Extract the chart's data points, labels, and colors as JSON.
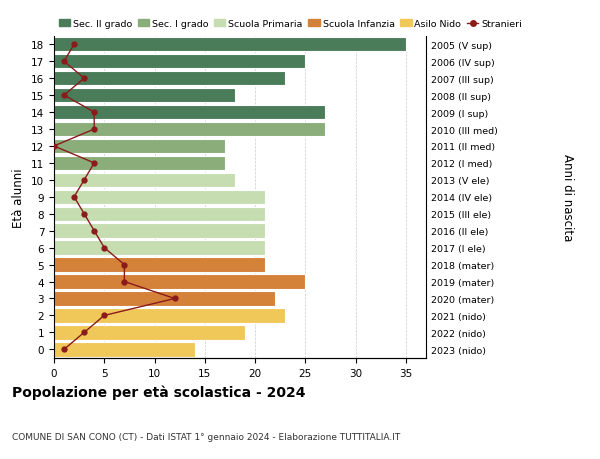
{
  "ages": [
    18,
    17,
    16,
    15,
    14,
    13,
    12,
    11,
    10,
    9,
    8,
    7,
    6,
    5,
    4,
    3,
    2,
    1,
    0
  ],
  "years": [
    "2005 (V sup)",
    "2006 (IV sup)",
    "2007 (III sup)",
    "2008 (II sup)",
    "2009 (I sup)",
    "2010 (III med)",
    "2011 (II med)",
    "2012 (I med)",
    "2013 (V ele)",
    "2014 (IV ele)",
    "2015 (III ele)",
    "2016 (II ele)",
    "2017 (I ele)",
    "2018 (mater)",
    "2019 (mater)",
    "2020 (mater)",
    "2021 (nido)",
    "2022 (nido)",
    "2023 (nido)"
  ],
  "bar_values": [
    35,
    25,
    23,
    18,
    27,
    27,
    17,
    17,
    18,
    21,
    21,
    21,
    21,
    21,
    25,
    22,
    23,
    19,
    14
  ],
  "bar_colors": [
    "#4a7c59",
    "#4a7c59",
    "#4a7c59",
    "#4a7c59",
    "#4a7c59",
    "#8aad7a",
    "#8aad7a",
    "#8aad7a",
    "#c5ddb0",
    "#c5ddb0",
    "#c5ddb0",
    "#c5ddb0",
    "#c5ddb0",
    "#d4813a",
    "#d4813a",
    "#d4813a",
    "#f0c85a",
    "#f0c85a",
    "#f0c85a"
  ],
  "stranieri_values": [
    2,
    1,
    3,
    1,
    4,
    4,
    0,
    4,
    3,
    2,
    3,
    4,
    5,
    7,
    7,
    12,
    5,
    3,
    1
  ],
  "stranieri_color": "#8b1a1a",
  "title": "Popolazione per età scolastica - 2024",
  "subtitle": "COMUNE DI SAN CONO (CT) - Dati ISTAT 1° gennaio 2024 - Elaborazione TUTTITALIA.IT",
  "ylabel_left": "Età alunni",
  "ylabel_right": "Anni di nascita",
  "xlim": [
    0,
    37
  ],
  "legend_labels": [
    "Sec. II grado",
    "Sec. I grado",
    "Scuola Primaria",
    "Scuola Infanzia",
    "Asilo Nido",
    "Stranieri"
  ],
  "legend_colors": [
    "#4a7c59",
    "#8aad7a",
    "#c5ddb0",
    "#d4813a",
    "#f0c85a",
    "#8b1a1a"
  ],
  "bg_color": "#ffffff",
  "grid_color": "#cccccc"
}
